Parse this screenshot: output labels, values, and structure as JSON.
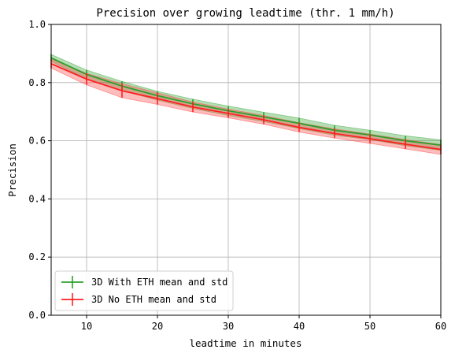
{
  "chart_data": {
    "type": "line",
    "title": "Precision over growing leadtime (thr. 1 mm/h)",
    "xlabel": "leadtime in minutes",
    "ylabel": "Precision",
    "xlim": [
      5,
      60
    ],
    "ylim": [
      0.0,
      1.0
    ],
    "xticks": [
      10,
      20,
      30,
      40,
      50,
      60
    ],
    "yticks": [
      "0.0",
      "0.2",
      "0.4",
      "0.6",
      "0.8",
      "1.0"
    ],
    "grid": true,
    "legend_position": "lower-left",
    "x": [
      5,
      10,
      15,
      20,
      25,
      30,
      35,
      40,
      45,
      50,
      55,
      60
    ],
    "series": [
      {
        "name": "3D With ETH mean and std",
        "color": "#2ca02c",
        "fill_color": "#2ca02c",
        "mean": [
          0.885,
          0.828,
          0.788,
          0.755,
          0.727,
          0.703,
          0.682,
          0.66,
          0.636,
          0.62,
          0.6,
          0.585
        ],
        "std": [
          0.012,
          0.015,
          0.016,
          0.015,
          0.016,
          0.016,
          0.016,
          0.018,
          0.017,
          0.016,
          0.017,
          0.018
        ]
      },
      {
        "name": "3D No ETH mean and std",
        "color": "#ff2020",
        "fill_color": "#ff4040",
        "mean": [
          0.865,
          0.812,
          0.772,
          0.745,
          0.716,
          0.694,
          0.672,
          0.646,
          0.625,
          0.607,
          0.588,
          0.57
        ],
        "std": [
          0.015,
          0.02,
          0.024,
          0.02,
          0.017,
          0.015,
          0.015,
          0.016,
          0.016,
          0.016,
          0.016,
          0.017
        ]
      }
    ]
  }
}
